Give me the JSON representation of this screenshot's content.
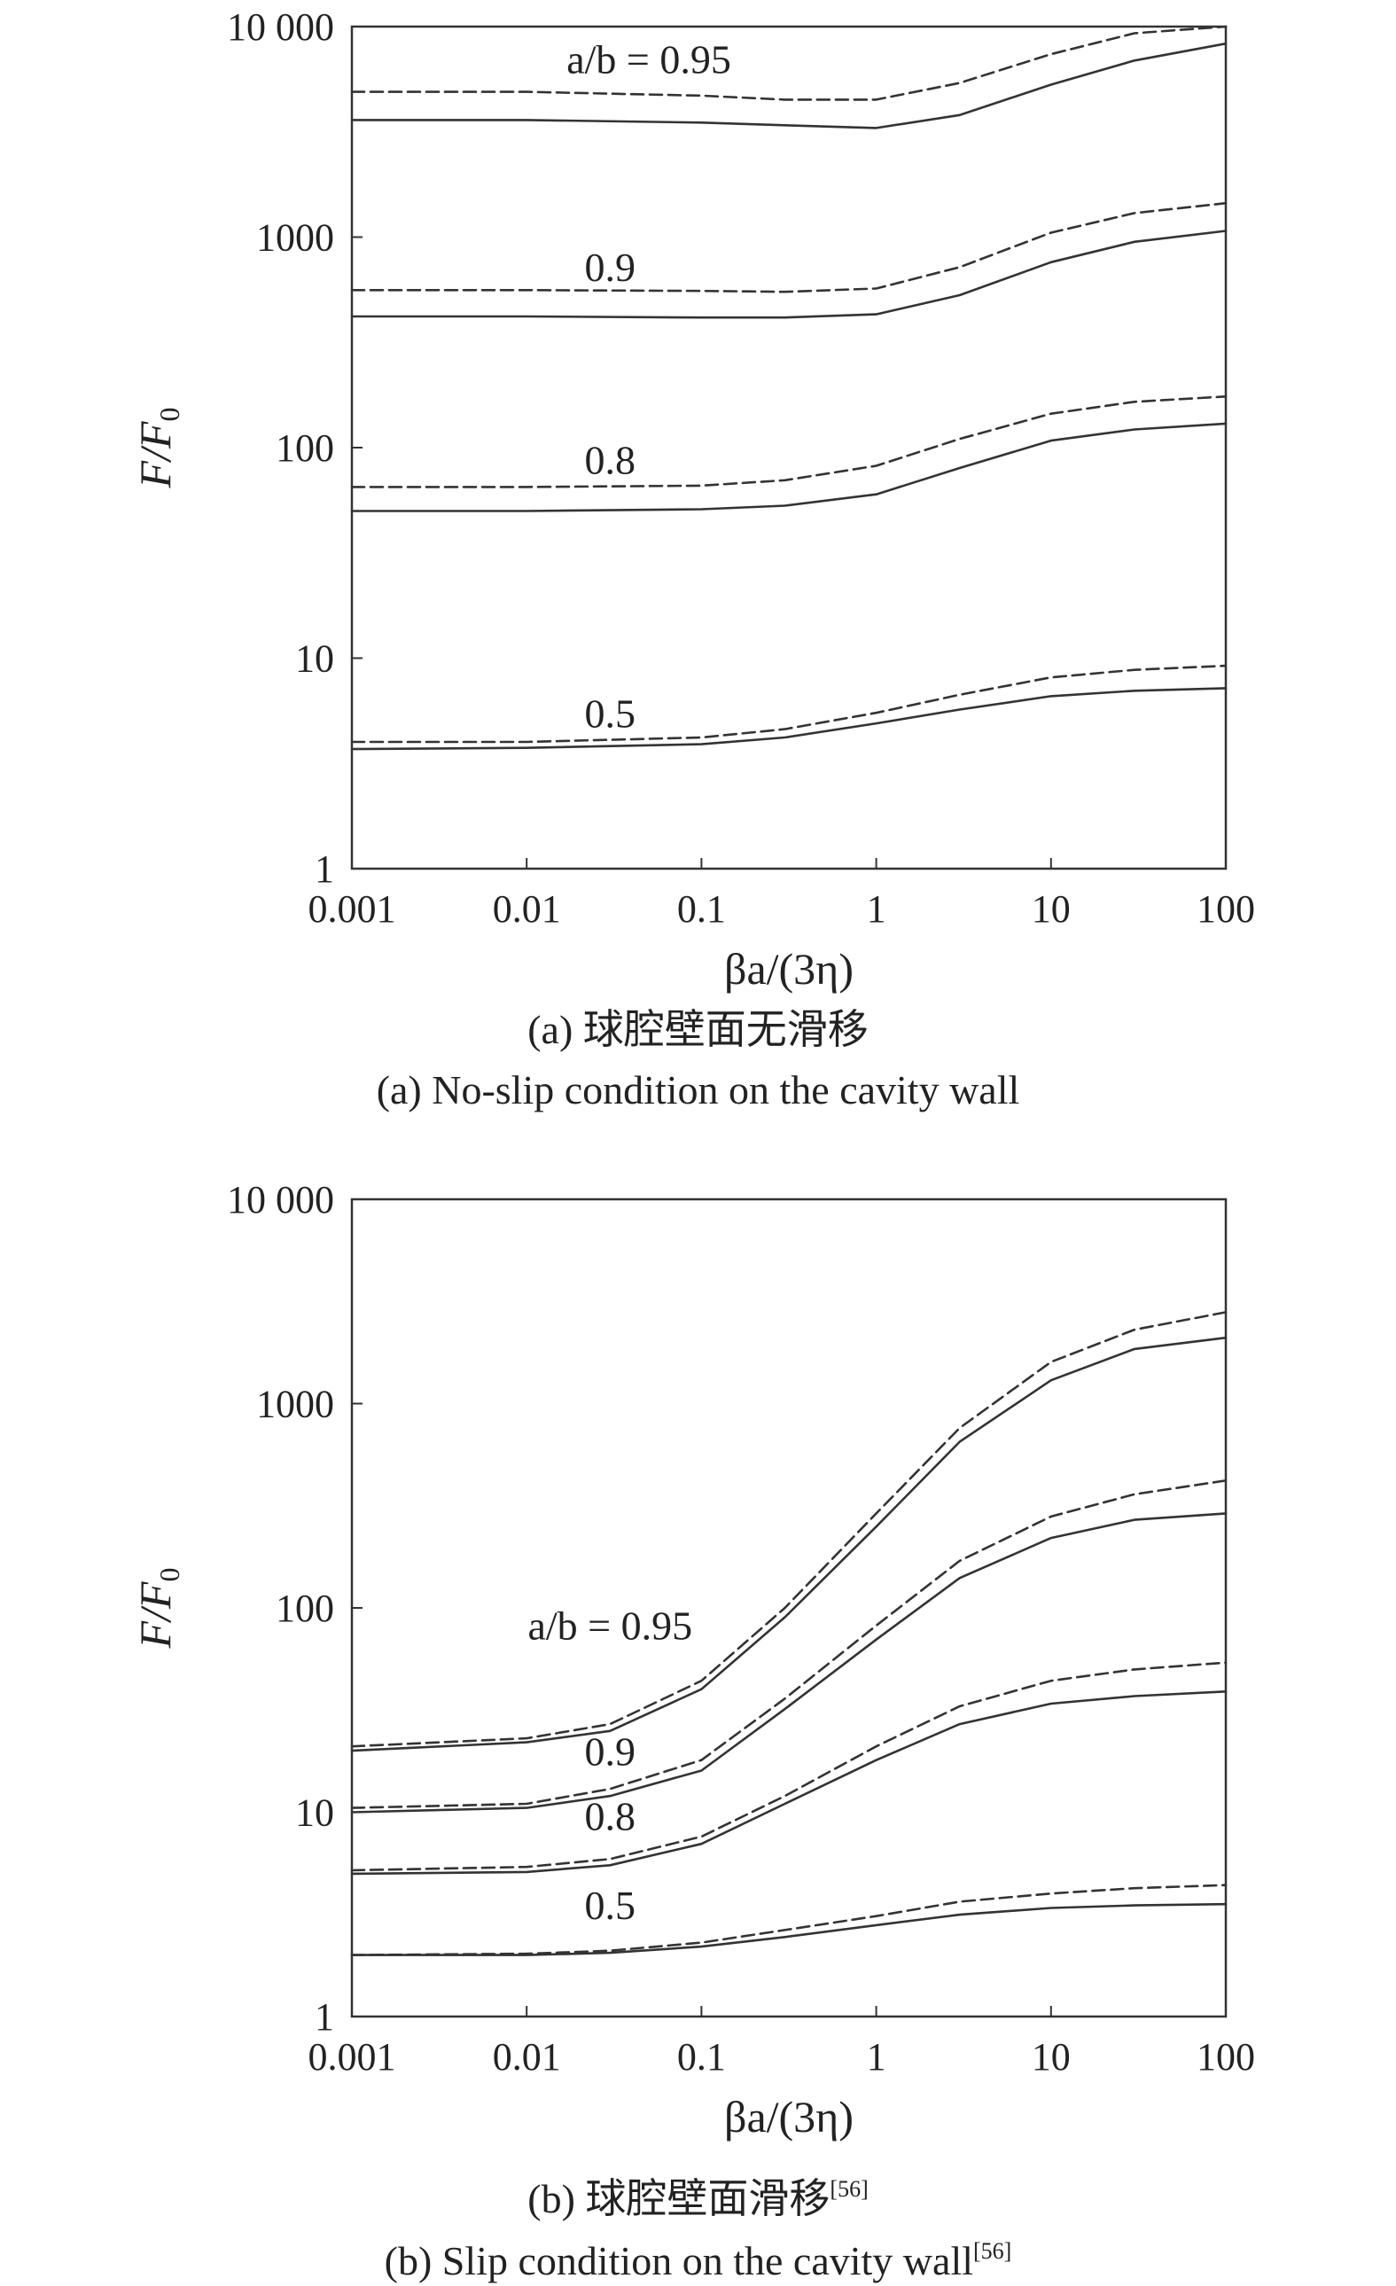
{
  "figure": {
    "panel_a": {
      "caption_cn": "(a) 球腔壁面无滑移",
      "caption_en": "(a) No-slip condition on the cavity wall"
    },
    "panel_b": {
      "caption_cn": "(b) 球腔壁面滑移",
      "caption_en": "(b) Slip condition on the cavity wall",
      "ref": "[56]"
    }
  },
  "chart_data": [
    {
      "type": "line",
      "panel": "a",
      "title": "",
      "xlabel": "βa/(3η)",
      "ylabel": "F/F0",
      "xscale": "log",
      "yscale": "log",
      "xlim": [
        0.001,
        100
      ],
      "ylim": [
        1,
        10000
      ],
      "x_ticks": [
        "0.001",
        "0.01",
        "0.1",
        "1",
        "10",
        "100"
      ],
      "y_ticks": [
        "1",
        "10",
        "100",
        "1000",
        "10 000"
      ],
      "grid": false,
      "x": [
        0.001,
        0.01,
        0.1,
        0.3,
        1,
        3,
        10,
        30,
        100
      ],
      "series": [
        {
          "name": "a/b = 0.95",
          "style": "solid",
          "values": [
            3600,
            3600,
            3500,
            3400,
            3300,
            3800,
            5300,
            6900,
            8300
          ]
        },
        {
          "name": "a/b = 0.95",
          "style": "dashed",
          "values": [
            4900,
            4900,
            4700,
            4500,
            4500,
            5400,
            7400,
            9300,
            10000
          ]
        },
        {
          "name": "0.9",
          "style": "solid",
          "values": [
            420,
            420,
            415,
            415,
            430,
            530,
            760,
            950,
            1070
          ]
        },
        {
          "name": "0.9",
          "style": "dashed",
          "values": [
            560,
            560,
            555,
            550,
            570,
            720,
            1050,
            1300,
            1450
          ]
        },
        {
          "name": "0.8",
          "style": "solid",
          "values": [
            50,
            50,
            51,
            53,
            60,
            80,
            108,
            122,
            130
          ]
        },
        {
          "name": "0.8",
          "style": "dashed",
          "values": [
            65,
            65,
            66,
            70,
            82,
            110,
            145,
            165,
            175
          ]
        },
        {
          "name": "0.5",
          "style": "solid",
          "values": [
            3.7,
            3.75,
            3.9,
            4.2,
            4.9,
            5.7,
            6.6,
            7.0,
            7.2
          ]
        },
        {
          "name": "0.5",
          "style": "dashed",
          "values": [
            4.0,
            4.0,
            4.2,
            4.6,
            5.5,
            6.7,
            8.1,
            8.8,
            9.2
          ]
        }
      ],
      "labels": [
        {
          "text": "a/b = 0.95",
          "x": 0.05,
          "y": 6000
        },
        {
          "text": "0.9",
          "x": 0.03,
          "y": 620
        },
        {
          "text": "0.8",
          "x": 0.03,
          "y": 75
        },
        {
          "text": "0.5",
          "x": 0.03,
          "y": 4.7
        }
      ]
    },
    {
      "type": "line",
      "panel": "b",
      "title": "",
      "xlabel": "βa/(3η)",
      "ylabel": "F/F0",
      "xscale": "log",
      "yscale": "log",
      "xlim": [
        0.001,
        100
      ],
      "ylim": [
        1,
        10000
      ],
      "x_ticks": [
        "0.001",
        "0.01",
        "0.1",
        "1",
        "10",
        "100"
      ],
      "y_ticks": [
        "1",
        "10",
        "100",
        "1000",
        "10 000"
      ],
      "grid": false,
      "x": [
        0.001,
        0.01,
        0.03,
        0.1,
        0.3,
        1,
        3,
        10,
        30,
        100
      ],
      "series": [
        {
          "name": "a/b = 0.95",
          "style": "solid",
          "values": [
            20,
            22,
            25,
            40,
            90,
            250,
            650,
            1300,
            1850,
            2100
          ]
        },
        {
          "name": "a/b = 0.95",
          "style": "dashed",
          "values": [
            21,
            23,
            27,
            44,
            100,
            290,
            760,
            1600,
            2300,
            2800
          ]
        },
        {
          "name": "0.9",
          "style": "solid",
          "values": [
            10,
            10.5,
            12,
            16,
            32,
            70,
            140,
            220,
            270,
            290
          ]
        },
        {
          "name": "0.9",
          "style": "dashed",
          "values": [
            10.5,
            11,
            13,
            18,
            36,
            82,
            170,
            280,
            360,
            420
          ]
        },
        {
          "name": "0.8",
          "style": "solid",
          "values": [
            5,
            5.1,
            5.5,
            7,
            11,
            18,
            27,
            34,
            37,
            39
          ]
        },
        {
          "name": "0.8",
          "style": "dashed",
          "values": [
            5.2,
            5.4,
            5.9,
            7.6,
            12,
            21,
            33,
            44,
            50,
            54
          ]
        },
        {
          "name": "0.5",
          "style": "solid",
          "values": [
            2,
            2,
            2.05,
            2.2,
            2.45,
            2.8,
            3.15,
            3.4,
            3.5,
            3.55
          ]
        },
        {
          "name": "0.5",
          "style": "dashed",
          "values": [
            2,
            2.03,
            2.1,
            2.3,
            2.65,
            3.1,
            3.65,
            4.0,
            4.25,
            4.4
          ]
        }
      ],
      "labels": [
        {
          "text": "a/b = 0.95",
          "x": 0.03,
          "y": 70
        },
        {
          "text": "0.9",
          "x": 0.03,
          "y": 17
        },
        {
          "text": "0.8",
          "x": 0.03,
          "y": 8.2
        },
        {
          "text": "0.5",
          "x": 0.03,
          "y": 3.0
        }
      ]
    }
  ]
}
